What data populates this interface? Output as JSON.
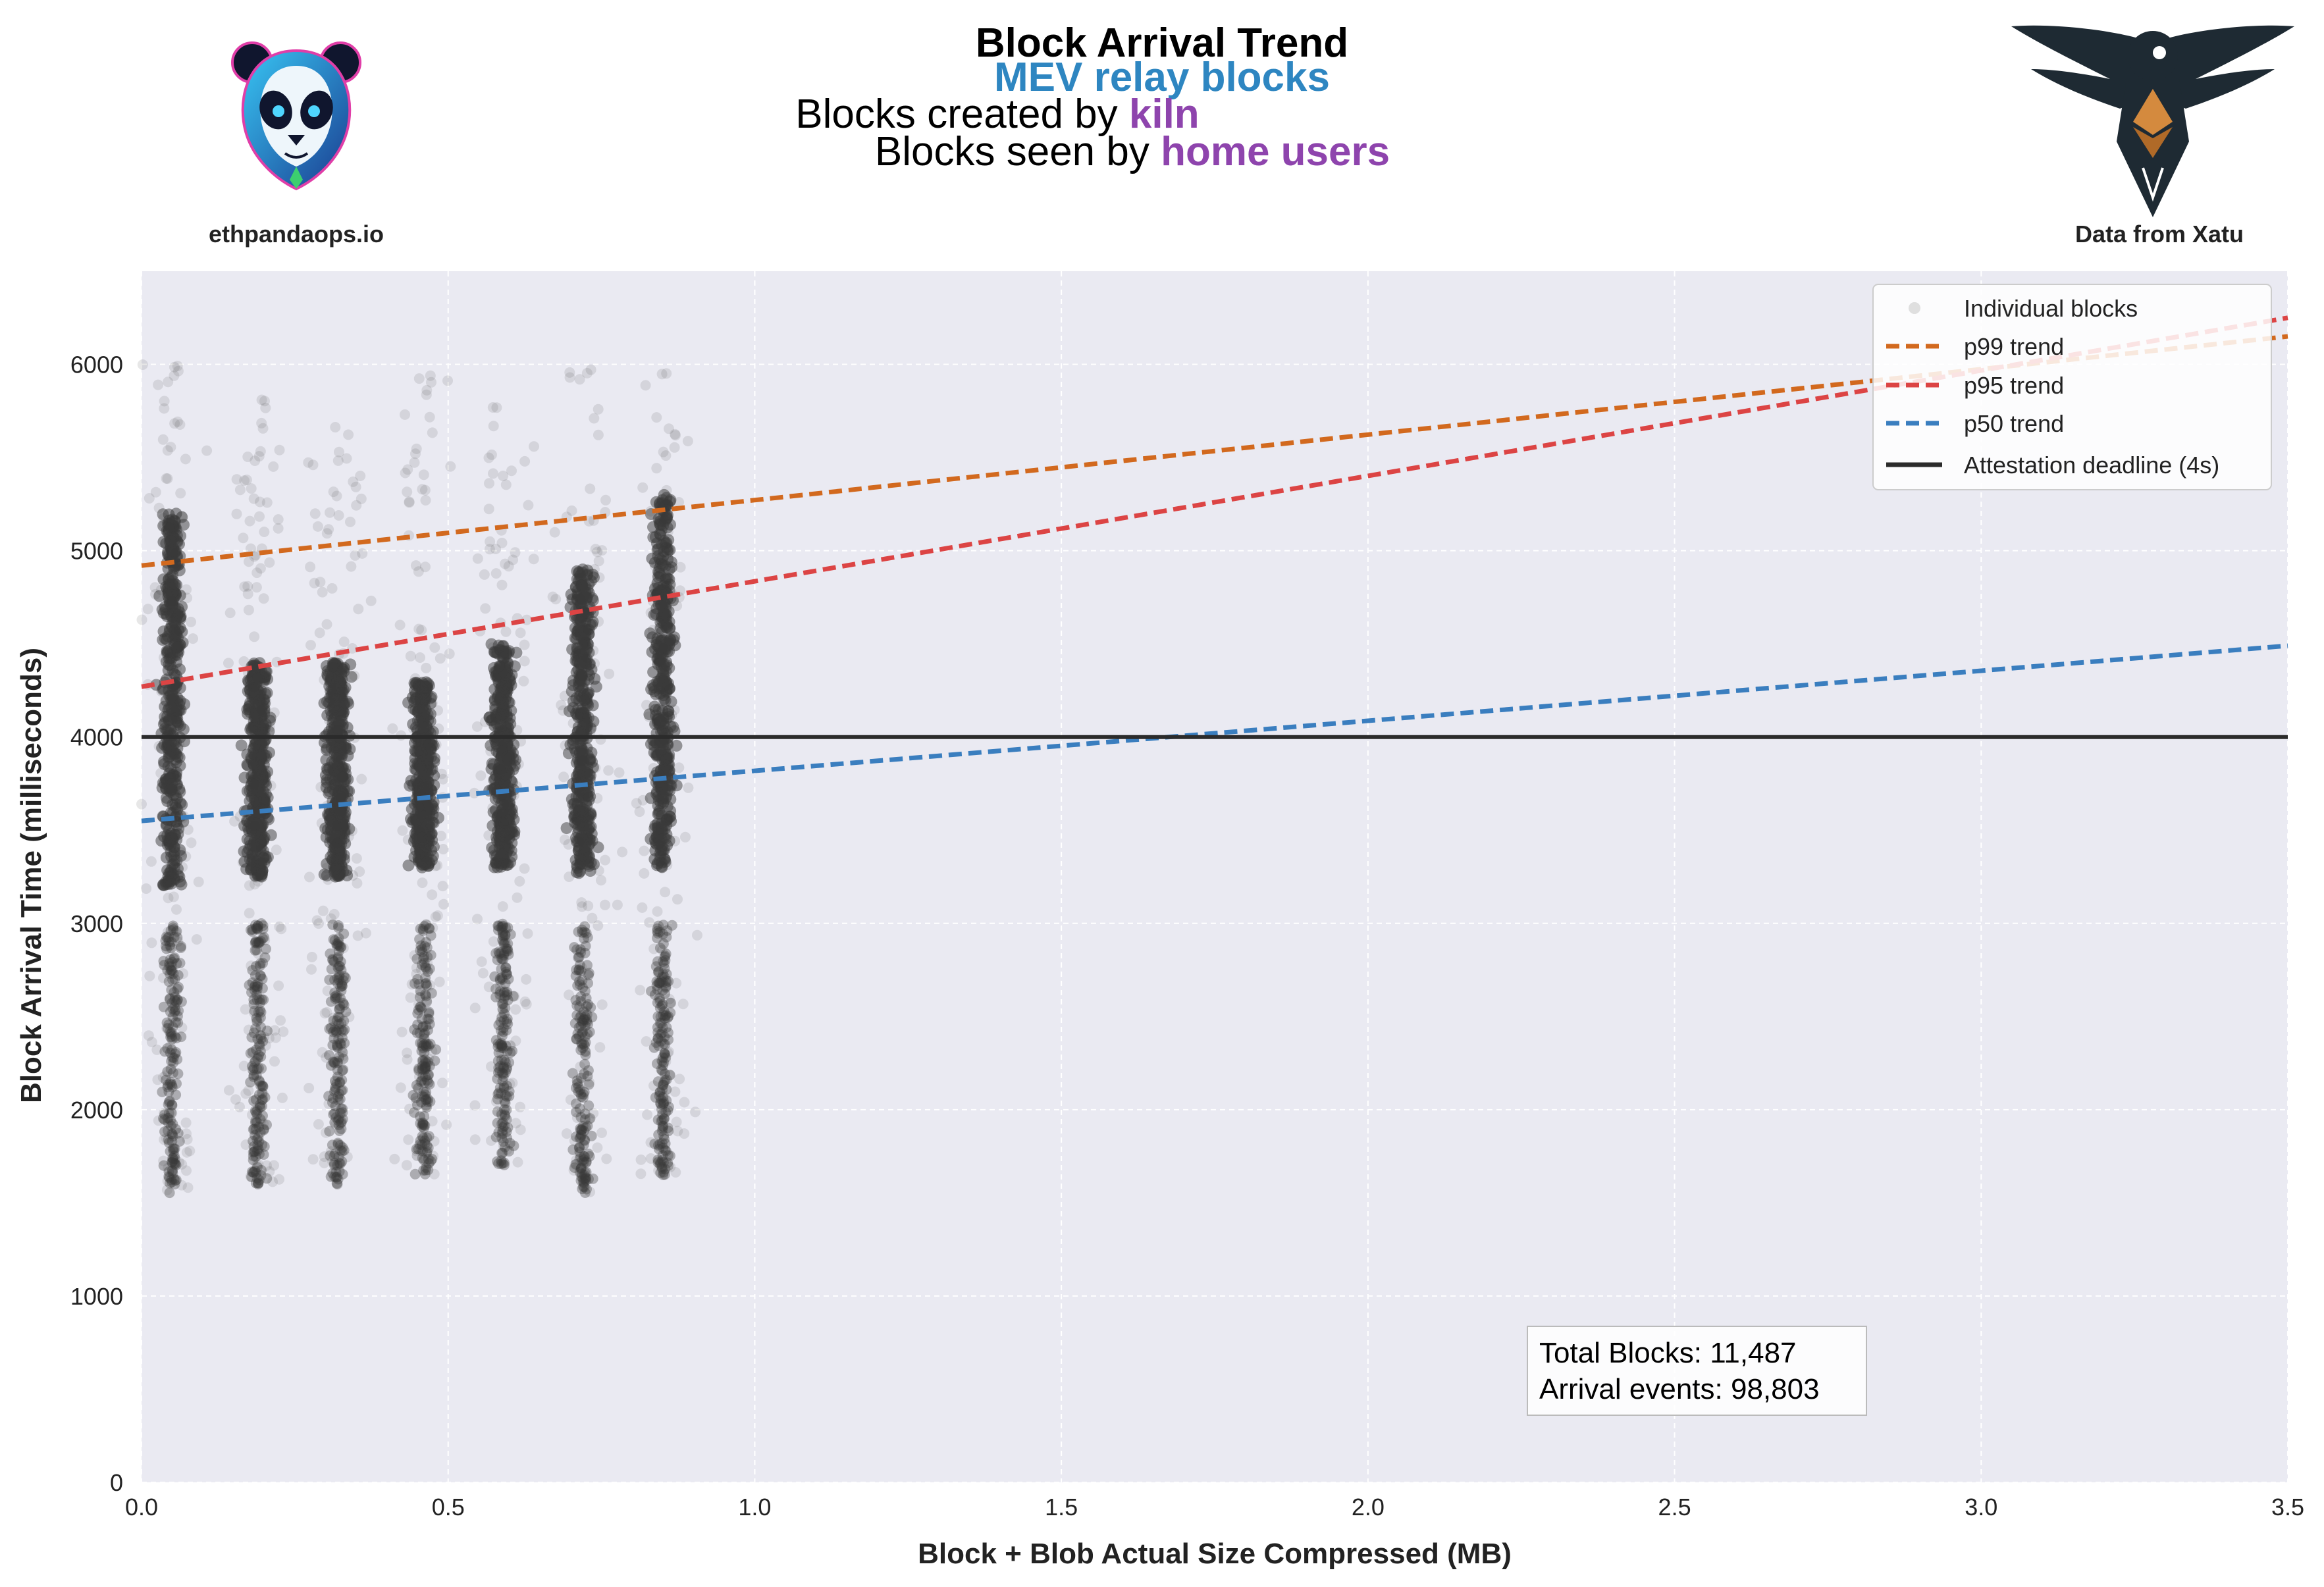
{
  "header": {
    "title": "Block Arrival Trend",
    "subtitle": "MEV relay blocks",
    "line3_prefix": "Blocks created by ",
    "line3_highlight": "kiln",
    "line4_prefix": "Blocks seen by ",
    "line4_highlight": "home users",
    "left_caption": "ethpandaops.io",
    "right_caption": "Data from Xatu"
  },
  "colors": {
    "subtitle": "#2E86C1",
    "highlight": "#8E44AD",
    "plot_bg": "#EAEAF2",
    "points": "#3a3a3a",
    "p99": "#D2691E",
    "p95": "#DC4444",
    "p50": "#3A7EBF",
    "deadline": "#2b2b2b"
  },
  "icons": {
    "left_logo": "panda-logo-icon",
    "right_logo": "xatu-bird-logo-icon"
  },
  "stats": {
    "total_blocks": "Total Blocks: 11,487",
    "arrival_events": "Arrival events: 98,803"
  },
  "chart_data": {
    "type": "scatter",
    "title": "",
    "xlabel": "Block + Blob Actual Size Compressed (MB)",
    "ylabel": "Block Arrival Time (milliseconds)",
    "xlim": [
      0,
      3.5
    ],
    "ylim": [
      0,
      6500
    ],
    "xticks": [
      0.0,
      0.5,
      1.0,
      1.5,
      2.0,
      2.5,
      3.0,
      3.5
    ],
    "xtick_labels": [
      "0.0",
      "0.5",
      "1.0",
      "1.5",
      "2.0",
      "2.5",
      "3.0",
      "3.5"
    ],
    "yticks": [
      0,
      1000,
      2000,
      3000,
      4000,
      5000,
      6000
    ],
    "ytick_labels": [
      "0",
      "1000",
      "2000",
      "3000",
      "4000",
      "5000",
      "6000"
    ],
    "grid": true,
    "legend_position": "top-right",
    "scatter_clusters": [
      {
        "x": 0.05,
        "y_min": 1550,
        "y_max": 6000,
        "dense_min": 3200,
        "dense_max": 5200
      },
      {
        "x": 0.19,
        "y_min": 1600,
        "y_max": 5900,
        "dense_min": 3250,
        "dense_max": 4400
      },
      {
        "x": 0.32,
        "y_min": 1600,
        "y_max": 5800,
        "dense_min": 3250,
        "dense_max": 4400
      },
      {
        "x": 0.46,
        "y_min": 1650,
        "y_max": 5950,
        "dense_min": 3300,
        "dense_max": 4300
      },
      {
        "x": 0.59,
        "y_min": 1700,
        "y_max": 5800,
        "dense_min": 3300,
        "dense_max": 4500
      },
      {
        "x": 0.72,
        "y_min": 1550,
        "y_max": 6000,
        "dense_min": 3250,
        "dense_max": 4900
      },
      {
        "x": 0.85,
        "y_min": 1650,
        "y_max": 6000,
        "dense_min": 3300,
        "dense_max": 5300
      }
    ],
    "series": [
      {
        "name": "Individual blocks",
        "kind": "scatter"
      },
      {
        "name": "p99 trend",
        "kind": "line",
        "x": [
          0.0,
          3.5
        ],
        "y": [
          4920,
          6150
        ]
      },
      {
        "name": "p95 trend",
        "kind": "line",
        "x": [
          0.0,
          3.5
        ],
        "y": [
          4270,
          6250
        ]
      },
      {
        "name": "p50 trend",
        "kind": "line",
        "x": [
          0.0,
          3.5
        ],
        "y": [
          3550,
          4490
        ]
      },
      {
        "name": "Attestation deadline (4s)",
        "kind": "hline",
        "y": 4000
      }
    ]
  }
}
